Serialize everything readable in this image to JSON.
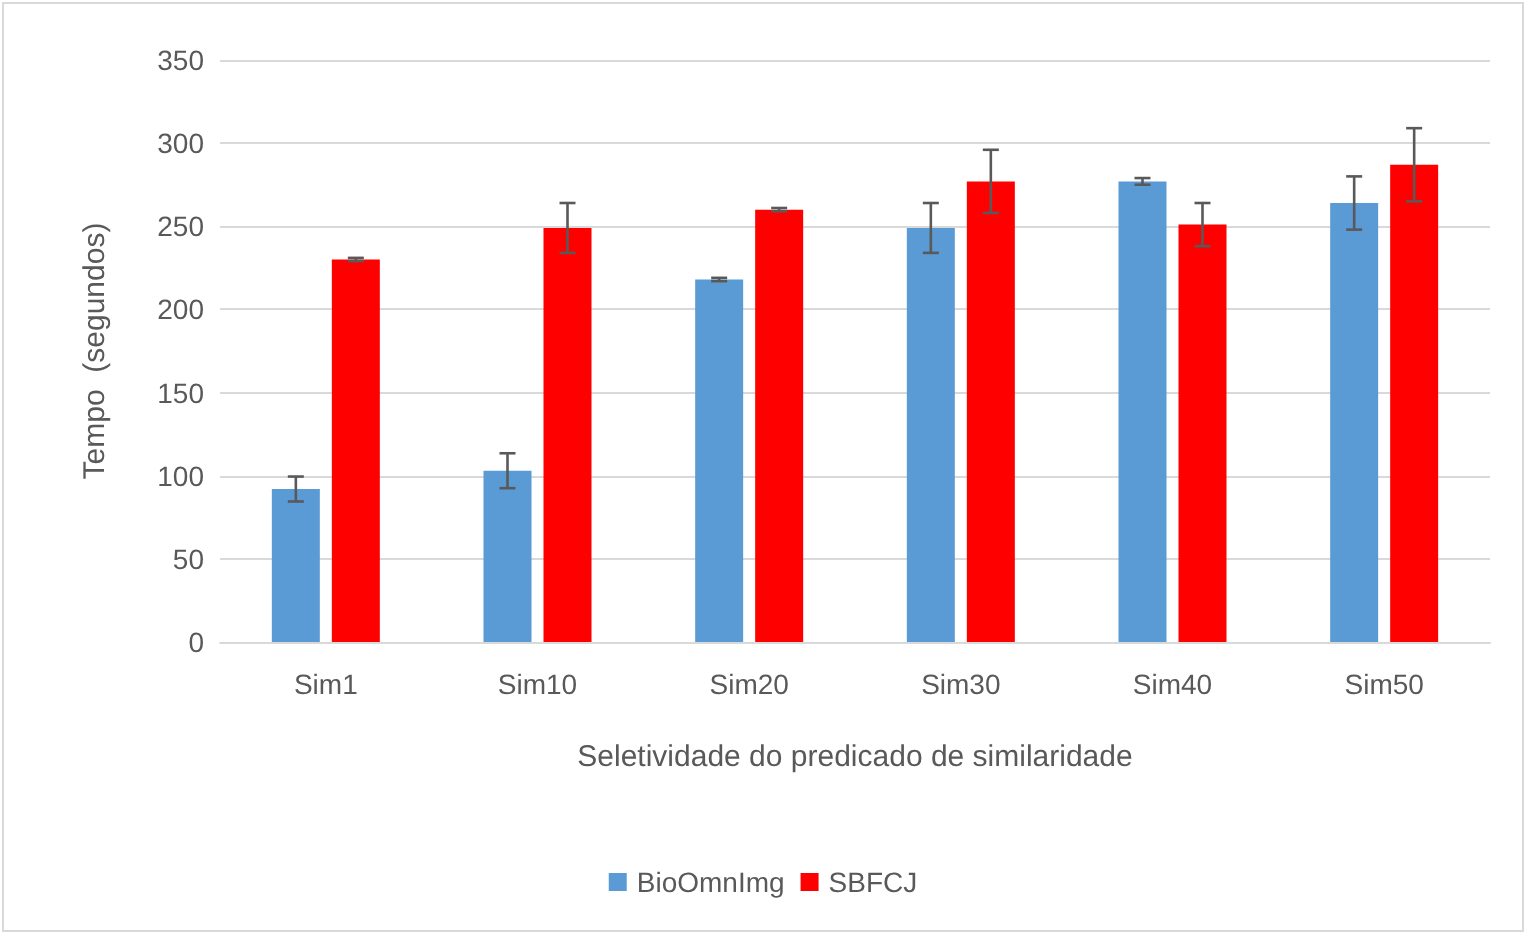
{
  "chart_data": {
    "type": "bar",
    "xlabel": "Seletividade do predicado de similaridade",
    "ylabel": "Tempo  (segundos)",
    "categories": [
      "Sim1",
      "Sim10",
      "Sim20",
      "Sim30",
      "Sim40",
      "Sim50"
    ],
    "series": [
      {
        "name": "BioOmnImg",
        "color": "#5b9bd5",
        "values": [
          92,
          103,
          218,
          249,
          277,
          264
        ],
        "errors": [
          7.5,
          10.5,
          1,
          15,
          2,
          16
        ]
      },
      {
        "name": "SBFCJ",
        "color": "#ff0000",
        "values": [
          230,
          249,
          260,
          277,
          251,
          287
        ],
        "errors": [
          1,
          15,
          1,
          19,
          13,
          22
        ]
      }
    ],
    "ylim": [
      0,
      350
    ],
    "yticks": [
      0,
      50,
      100,
      150,
      200,
      250,
      300,
      350
    ],
    "grid": "y",
    "legend": "bottom"
  }
}
